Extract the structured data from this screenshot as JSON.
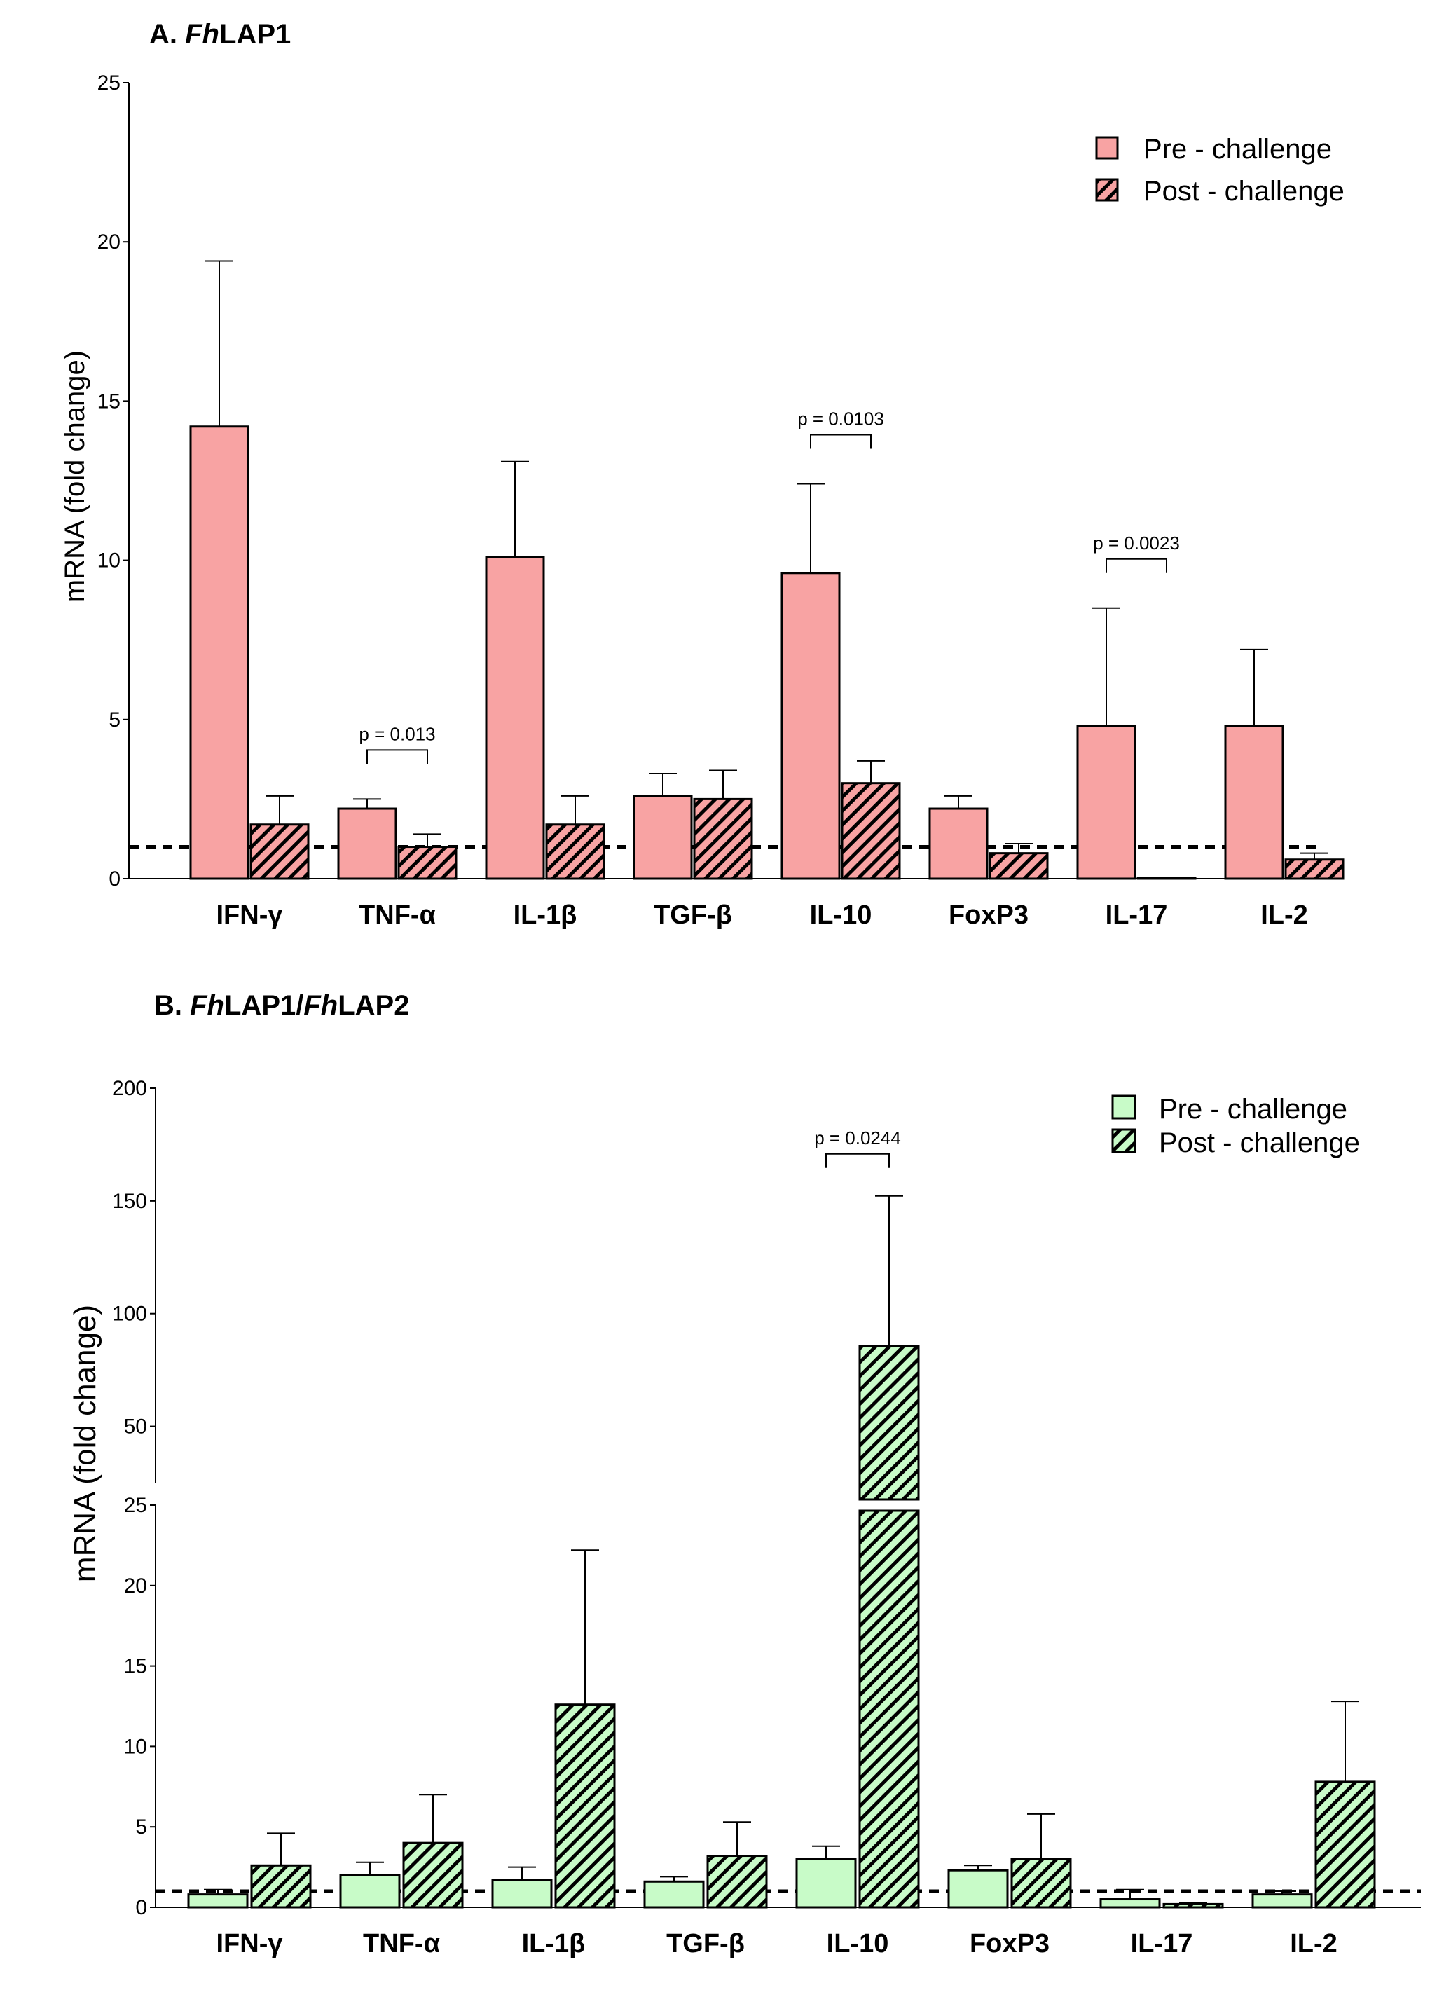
{
  "chart_data": [
    {
      "type": "bar",
      "title_prefix": "A.",
      "title_italic": "Fh",
      "title_rest": "LAP1",
      "ylabel": "mRNA (fold change)",
      "ylim": [
        0,
        25
      ],
      "yticks": [
        "0",
        "5",
        "10",
        "15",
        "20",
        "25"
      ],
      "ytick_values": [
        0,
        5,
        10,
        15,
        20,
        25
      ],
      "categories": [
        "IFN-γ",
        "TNF-α",
        "IL-1β",
        "TGF-β",
        "IL-10",
        "FoxP3",
        "IL-17",
        "IL-2"
      ],
      "reference_line": 1,
      "series": [
        {
          "name": "Pre - challenge",
          "pattern": "solid",
          "color": "#f8a3a3",
          "values": [
            14.2,
            2.2,
            10.1,
            2.6,
            9.6,
            2.2,
            4.8,
            4.8
          ],
          "errors": [
            5.2,
            0.3,
            3.0,
            0.7,
            2.8,
            0.4,
            3.7,
            2.4
          ]
        },
        {
          "name": "Post - challenge",
          "pattern": "hatched",
          "color": "#f8a3a3",
          "values": [
            1.7,
            1.0,
            1.7,
            2.5,
            3.0,
            0.8,
            0.0,
            0.6
          ],
          "errors": [
            0.9,
            0.4,
            0.9,
            0.9,
            0.7,
            0.3,
            0.0,
            0.2
          ]
        }
      ],
      "comparisons": [
        {
          "category_index": 1,
          "label": "p = 0.013"
        },
        {
          "category_index": 4,
          "label": "p = 0.0103"
        },
        {
          "category_index": 6,
          "label": "p = 0.0023"
        }
      ],
      "legend_position": "top-right"
    },
    {
      "type": "bar",
      "title_prefix": "B.",
      "title_italic": "Fh",
      "title_rest": "LAP1/",
      "title_italic2": "Fh",
      "title_rest2": "LAP2",
      "ylabel": "mRNA (fold change)",
      "ylim": [
        0,
        200
      ],
      "broken_axis": {
        "lower": [
          0,
          25
        ],
        "upper": [
          25,
          200
        ]
      },
      "yticks_lower": [
        "0",
        "5",
        "10",
        "15",
        "20",
        "25"
      ],
      "ytick_values_lower": [
        0,
        5,
        10,
        15,
        20,
        25
      ],
      "yticks_upper": [
        "50",
        "100",
        "150",
        "200"
      ],
      "ytick_values_upper": [
        50,
        100,
        150,
        200
      ],
      "categories": [
        "IFN-γ",
        "TNF-α",
        "IL-1β",
        "TGF-β",
        "IL-10",
        "FoxP3",
        "IL-17",
        "IL-2"
      ],
      "reference_line": 1,
      "series": [
        {
          "name": "Pre - challenge",
          "pattern": "solid",
          "color": "#c8fbc8",
          "values": [
            0.8,
            2.0,
            1.7,
            1.6,
            3.0,
            2.3,
            0.5,
            0.8
          ],
          "errors": [
            0.3,
            0.8,
            0.8,
            0.3,
            0.8,
            0.3,
            0.6,
            0.2
          ]
        },
        {
          "name": "Post - challenge",
          "pattern": "hatched",
          "color": "#c8fbc8",
          "values": [
            2.6,
            4.0,
            12.6,
            3.2,
            85.6,
            3.0,
            0.2,
            7.8
          ],
          "errors": [
            2.0,
            3.0,
            9.6,
            2.1,
            66.6,
            2.8,
            0.1,
            5.0
          ]
        }
      ],
      "comparisons": [
        {
          "category_index": 4,
          "label": "p = 0.0244"
        }
      ],
      "legend_position": "top-right"
    }
  ]
}
